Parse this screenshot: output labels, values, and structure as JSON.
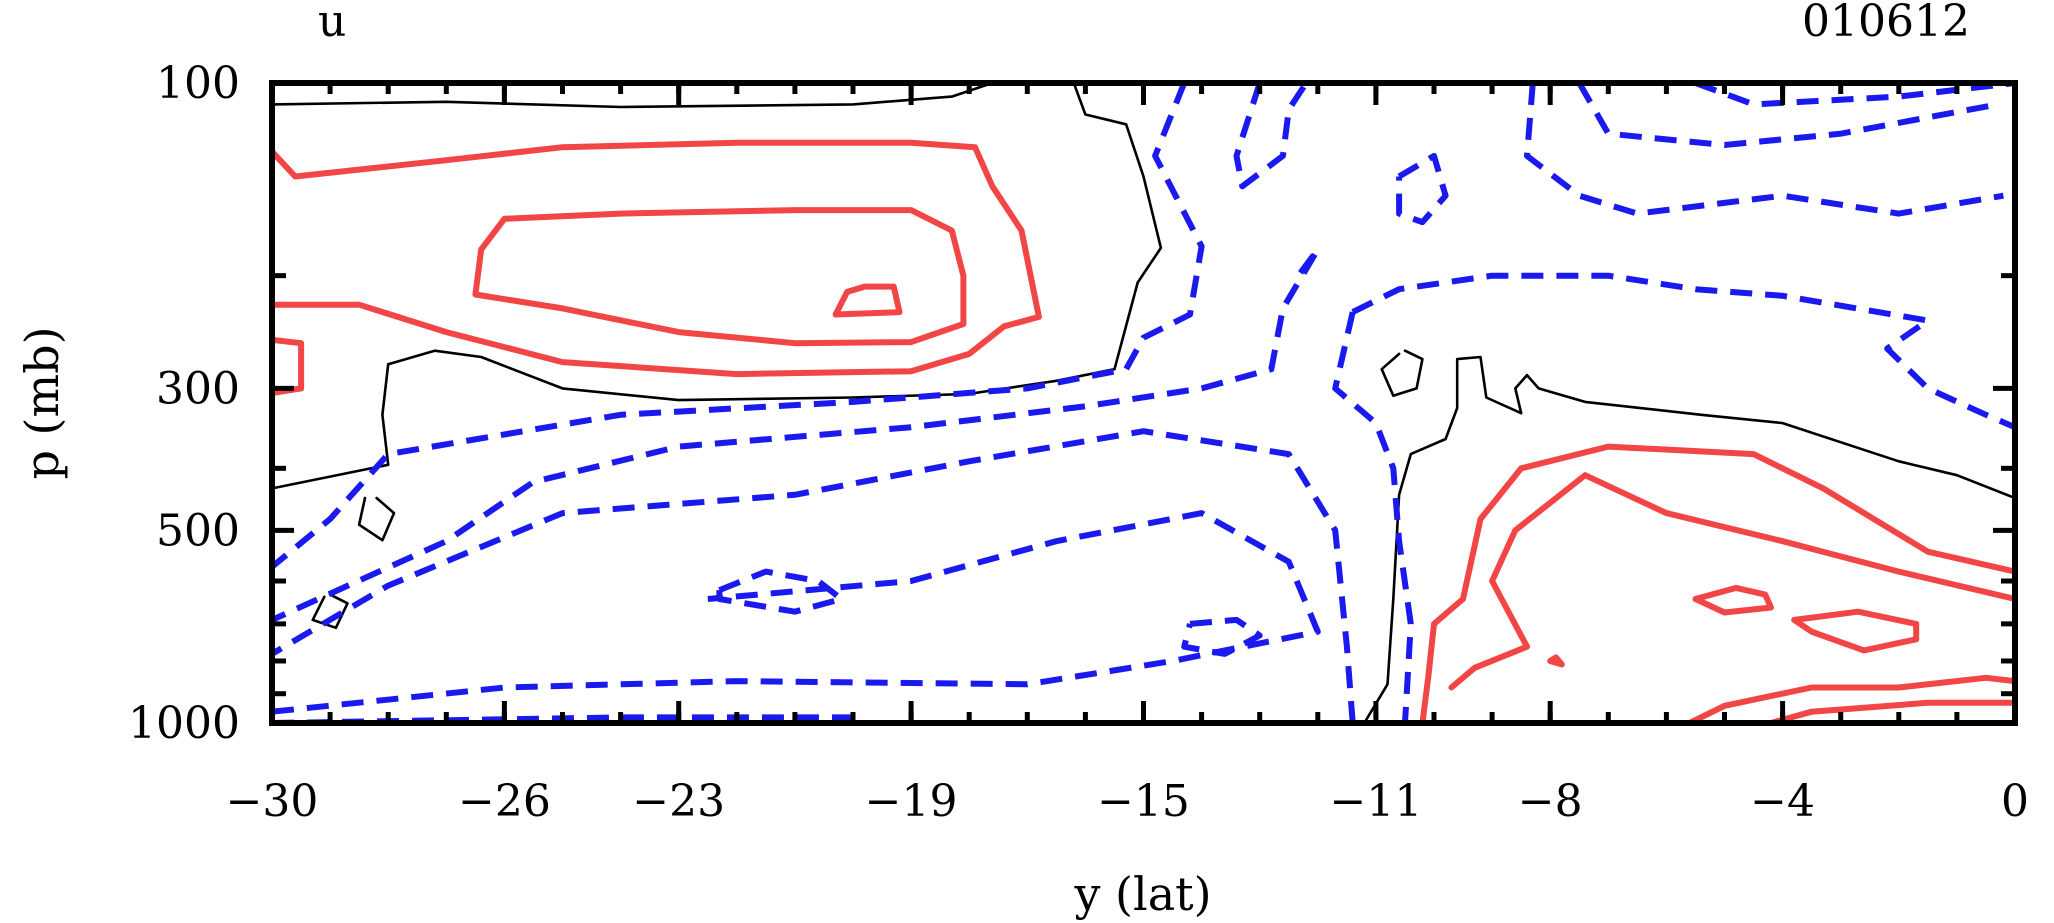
{
  "chart_data": {
    "type": "contour",
    "title": "u",
    "date_label": "010612",
    "xlabel": "y (lat)",
    "ylabel": "p (mb)",
    "xlim": [
      -30,
      0
    ],
    "ylim": [
      1000,
      100
    ],
    "y_scale": "log",
    "x_ticks": [
      -30,
      -26,
      -23,
      -19,
      -15,
      -11,
      -8,
      -4,
      0
    ],
    "x_tick_labels": [
      "−30",
      "−26",
      "−23",
      "−19",
      "−15",
      "−11",
      "−8",
      "−4",
      "0"
    ],
    "y_ticks": [
      100,
      300,
      500,
      1000
    ],
    "y_tick_labels": [
      "100",
      "300",
      "500",
      "1000"
    ],
    "series": [
      {
        "style": "solid-thin",
        "color": "#000000",
        "contours": [
          [
            [
              -30,
              108
            ],
            [
              -27,
              107
            ],
            [
              -24,
              109
            ],
            [
              -20,
              108
            ],
            [
              -18.3,
              105
            ],
            [
              -17.6,
              100
            ]
          ],
          [
            [
              -16.2,
              100
            ],
            [
              -16,
              112
            ],
            [
              -15.3,
              116
            ],
            [
              -15,
              140
            ],
            [
              -14.7,
              181
            ],
            [
              -15.1,
              205
            ],
            [
              -15.5,
              280
            ],
            [
              -16.5,
              292
            ],
            [
              -18,
              306
            ],
            [
              -20,
              310
            ],
            [
              -23,
              313
            ],
            [
              -25,
              300
            ],
            [
              -26.4,
              268
            ],
            [
              -27.2,
              262
            ],
            [
              -28,
              275
            ],
            [
              -28.1,
              330
            ],
            [
              -28,
              395
            ],
            [
              -30,
              430
            ]
          ],
          [
            [
              -28.4,
              445
            ],
            [
              -28.5,
              490
            ],
            [
              -28.1,
              518
            ],
            [
              -27.9,
              470
            ],
            [
              -28.2,
              445
            ]
          ],
          [
            [
              -29.1,
              635
            ],
            [
              -29.3,
              690
            ],
            [
              -28.9,
              710
            ],
            [
              -28.7,
              650
            ],
            [
              -29,
              630
            ]
          ],
          [
            [
              -10.6,
              265
            ],
            [
              -10.9,
              280
            ],
            [
              -10.7,
              308
            ],
            [
              -10.3,
              300
            ],
            [
              -10.2,
              270
            ],
            [
              -10.5,
              262
            ]
          ],
          [
            [
              -11.2,
              1000
            ],
            [
              -10.8,
              870
            ],
            [
              -10.7,
              640
            ],
            [
              -10.6,
              440
            ],
            [
              -10.4,
              380
            ],
            [
              -9.8,
              360
            ],
            [
              -9.6,
              322
            ],
            [
              -9.6,
              270
            ],
            [
              -9.2,
              268
            ],
            [
              -9.1,
              310
            ],
            [
              -8.5,
              328
            ],
            [
              -8.6,
              300
            ],
            [
              -8.4,
              286
            ],
            [
              -8.2,
              300
            ],
            [
              -7.4,
              315
            ],
            [
              -5.4,
              330
            ],
            [
              -4,
              340
            ],
            [
              -2,
              390
            ],
            [
              -1,
              410
            ],
            [
              0,
              445
            ]
          ]
        ]
      },
      {
        "style": "solid-thick",
        "color": "#f24545",
        "contours": [
          [
            [
              -30,
              128
            ],
            [
              -29.6,
              140
            ],
            [
              -27,
              132
            ],
            [
              -25,
              126
            ],
            [
              -22,
              124
            ],
            [
              -19,
              124
            ],
            [
              -17.9,
              126
            ],
            [
              -17.6,
              145
            ],
            [
              -17.1,
              170
            ],
            [
              -16.8,
              232
            ],
            [
              -17.4,
              240
            ],
            [
              -18,
              265
            ],
            [
              -19,
              282
            ],
            [
              -22,
              285
            ],
            [
              -25,
              273
            ],
            [
              -27,
              245
            ],
            [
              -28.5,
              222
            ],
            [
              -30,
              222
            ]
          ],
          [
            [
              -26.4,
              182
            ],
            [
              -26,
              163
            ],
            [
              -24,
              160
            ],
            [
              -21,
              158
            ],
            [
              -19,
              158
            ],
            [
              -18.3,
              170
            ],
            [
              -18.1,
              200
            ],
            [
              -18.1,
              238
            ],
            [
              -19,
              254
            ],
            [
              -21,
              255
            ],
            [
              -23,
              245
            ],
            [
              -25,
              225
            ],
            [
              -26.5,
              214
            ],
            [
              -26.4,
              182
            ]
          ],
          [
            [
              -20.1,
              212
            ],
            [
              -19.8,
              208
            ],
            [
              -19.3,
              208
            ],
            [
              -19.2,
              228
            ],
            [
              -20.3,
              230
            ],
            [
              -20.1,
              212
            ]
          ],
          [
            [
              -30,
              252
            ],
            [
              -29.5,
              255
            ],
            [
              -29.5,
              300
            ],
            [
              -30,
              305
            ]
          ],
          [
            [
              -10.2,
              1000
            ],
            [
              -10.1,
              850
            ],
            [
              -10,
              700
            ],
            [
              -9.5,
              640
            ],
            [
              -9.2,
              480
            ],
            [
              -8.5,
              400
            ],
            [
              -7,
              370
            ],
            [
              -4.5,
              380
            ],
            [
              -3.3,
              430
            ],
            [
              -1.5,
              540
            ],
            [
              0,
              580
            ]
          ],
          [
            [
              -9.7,
              880
            ],
            [
              -9.3,
              820
            ],
            [
              -8.4,
              760
            ],
            [
              -9,
              600
            ],
            [
              -8.6,
              500
            ],
            [
              -7.4,
              410
            ],
            [
              -6,
              470
            ],
            [
              -4,
              520
            ],
            [
              -2,
              580
            ],
            [
              0,
              640
            ]
          ],
          [
            [
              -5.5,
              640
            ],
            [
              -4.8,
              615
            ],
            [
              -4.3,
              630
            ],
            [
              -4.2,
              660
            ],
            [
              -5,
              672
            ],
            [
              -5.5,
              640
            ]
          ],
          [
            [
              -3.8,
              690
            ],
            [
              -2.7,
              670
            ],
            [
              -1.7,
              700
            ],
            [
              -1.7,
              740
            ],
            [
              -2.6,
              770
            ],
            [
              -3.5,
              720
            ],
            [
              -3.8,
              690
            ]
          ],
          [
            [
              -8.0,
              800
            ],
            [
              -7.9,
              790
            ],
            [
              -7.8,
              810
            ],
            [
              -8.0,
              800
            ]
          ],
          [
            [
              -5.6,
              1000
            ],
            [
              -5,
              940
            ],
            [
              -3.5,
              880
            ],
            [
              -2,
              880
            ],
            [
              -0.5,
              850
            ],
            [
              0,
              860
            ]
          ],
          [
            [
              -4.2,
              1000
            ],
            [
              -3.5,
              960
            ],
            [
              -1.5,
              930
            ],
            [
              0,
              930
            ]
          ]
        ]
      },
      {
        "style": "dashed",
        "color": "#1a1aee",
        "contours": [
          [
            [
              -14.3,
              100
            ],
            [
              -14.8,
              130
            ],
            [
              -14,
              180
            ],
            [
              -14.2,
              230
            ],
            [
              -15,
              250
            ],
            [
              -15.3,
              280
            ],
            [
              -17,
              300
            ],
            [
              -20,
              315
            ],
            [
              -24,
              330
            ],
            [
              -28,
              380
            ],
            [
              -29,
              480
            ],
            [
              -30,
              570
            ]
          ],
          [
            [
              -13,
              100
            ],
            [
              -13.4,
              130
            ],
            [
              -13.3,
              145
            ],
            [
              -12.6,
              130
            ],
            [
              -12.5,
              110
            ],
            [
              -12.2,
              100
            ]
          ],
          [
            [
              -12.3,
              198
            ],
            [
              -12,
              182
            ],
            [
              -12.6,
              225
            ],
            [
              -12.8,
              280
            ],
            [
              -14,
              300
            ],
            [
              -16,
              320
            ],
            [
              -19,
              345
            ],
            [
              -23,
              370
            ],
            [
              -25.5,
              420
            ],
            [
              -27,
              520
            ],
            [
              -30,
              690
            ]
          ],
          [
            [
              -11.4,
              228
            ],
            [
              -10.6,
              210
            ],
            [
              -9,
              200
            ],
            [
              -7,
              200
            ],
            [
              -5.5,
              210
            ],
            [
              -4,
              215
            ],
            [
              -1.5,
              235
            ],
            [
              -2.2,
              260
            ],
            [
              -1.5,
              300
            ],
            [
              -0.5,
              330
            ],
            [
              0,
              345
            ]
          ],
          [
            [
              -11.4,
              228
            ],
            [
              -11.7,
              300
            ],
            [
              -11,
              340
            ],
            [
              -10.7,
              400
            ],
            [
              -10.6,
              520
            ],
            [
              -10.4,
              700
            ],
            [
              -10.5,
              1000
            ]
          ],
          [
            [
              -11.4,
              1000
            ],
            [
              -11.5,
              760
            ],
            [
              -11.7,
              500
            ],
            [
              -12.5,
              380
            ],
            [
              -15,
              350
            ],
            [
              -18,
              390
            ],
            [
              -21,
              440
            ],
            [
              -25,
              470
            ],
            [
              -28,
              610
            ],
            [
              -30,
              780
            ]
          ],
          [
            [
              -30,
              960
            ],
            [
              -26,
              880
            ],
            [
              -22,
              860
            ],
            [
              -17,
              870
            ],
            [
              -14.5,
              800
            ],
            [
              -12,
              720
            ],
            [
              -12.5,
              560
            ],
            [
              -14,
              470
            ],
            [
              -16.5,
              520
            ],
            [
              -19,
              600
            ],
            [
              -22.5,
              640
            ]
          ],
          [
            [
              -22.3,
              620
            ],
            [
              -21.5,
              580
            ],
            [
              -20.6,
              600
            ],
            [
              -20.2,
              640
            ],
            [
              -21,
              670
            ],
            [
              -22.3,
              640
            ],
            [
              -22.3,
              620
            ]
          ],
          [
            [
              -14.2,
              700
            ],
            [
              -13.4,
              690
            ],
            [
              -13,
              730
            ],
            [
              -13.6,
              780
            ],
            [
              -14.3,
              760
            ],
            [
              -14.2,
              700
            ]
          ],
          [
            [
              -10.6,
              140
            ],
            [
              -10,
              130
            ],
            [
              -9.8,
              150
            ],
            [
              -10.2,
              165
            ],
            [
              -10.6,
              160
            ],
            [
              -10.6,
              140
            ]
          ],
          [
            [
              -8.3,
              100
            ],
            [
              -8.4,
              130
            ],
            [
              -7.5,
              150
            ],
            [
              -6.5,
              160
            ],
            [
              -4,
              150
            ],
            [
              -2,
              160
            ],
            [
              -0.2,
              150
            ]
          ],
          [
            [
              -7.5,
              100
            ],
            [
              -7,
              120
            ],
            [
              -5,
              125
            ],
            [
              -3,
              120
            ],
            [
              -0.3,
              108
            ]
          ],
          [
            [
              -5.5,
              100
            ],
            [
              -4.5,
              108
            ],
            [
              -2,
              105
            ],
            [
              0,
              100
            ]
          ],
          [
            [
              -30,
              1000
            ],
            [
              -27,
              990
            ],
            [
              -24,
              980
            ],
            [
              -20,
              980
            ]
          ]
        ]
      }
    ],
    "grid": false,
    "legend": "none"
  }
}
